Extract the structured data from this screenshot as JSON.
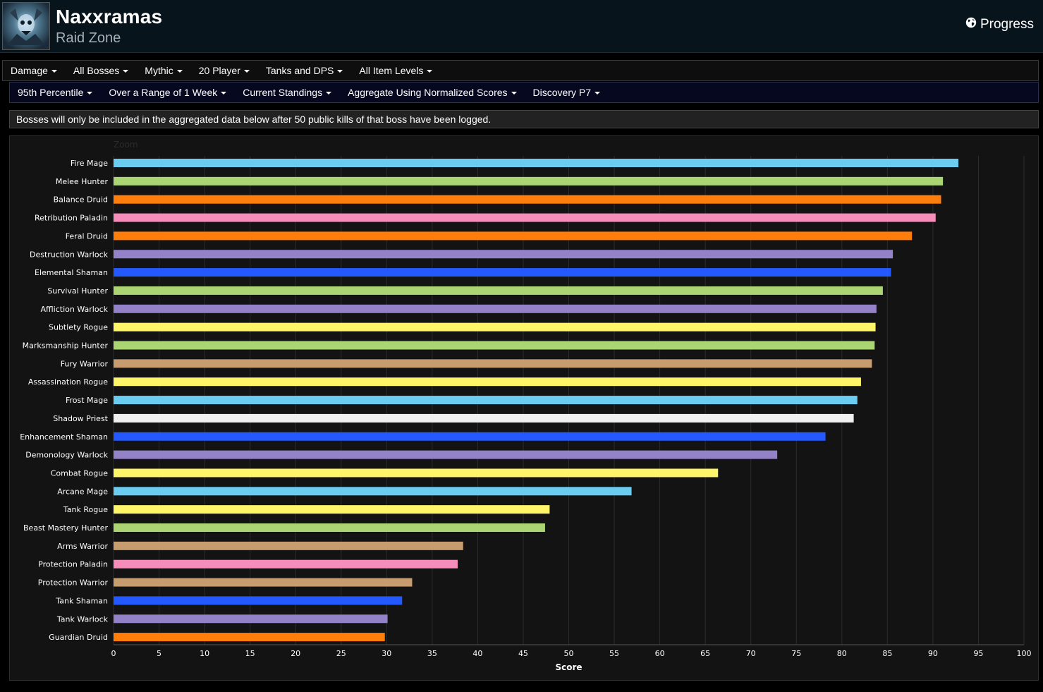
{
  "header": {
    "title": "Naxxramas",
    "subtitle": "Raid Zone",
    "progress_label": "Progress"
  },
  "filters_row1": [
    {
      "label": "Damage"
    },
    {
      "label": "All Bosses"
    },
    {
      "label": "Mythic"
    },
    {
      "label": "20 Player"
    },
    {
      "label": "Tanks and DPS"
    },
    {
      "label": "All Item Levels"
    }
  ],
  "filters_row2": [
    {
      "label": "95th Percentile"
    },
    {
      "label": "Over a Range of 1 Week"
    },
    {
      "label": "Current Standings"
    },
    {
      "label": "Aggregate Using Normalized Scores"
    },
    {
      "label": "Discovery P7"
    }
  ],
  "notice": "Bosses will only be included in the aggregated data below after 50 public kills of that boss have been logged.",
  "chart_data": {
    "type": "bar",
    "orientation": "horizontal",
    "zoom_label": "Zoom",
    "xlabel": "Score",
    "xlim": [
      0,
      100
    ],
    "xticks": [
      0,
      5,
      10,
      15,
      20,
      25,
      30,
      35,
      40,
      45,
      50,
      55,
      60,
      65,
      70,
      75,
      80,
      85,
      90,
      95,
      100
    ],
    "grid": "vertical",
    "categories": [
      "Fire Mage",
      "Melee Hunter",
      "Balance Druid",
      "Retribution Paladin",
      "Feral Druid",
      "Destruction Warlock",
      "Elemental Shaman",
      "Survival Hunter",
      "Affliction Warlock",
      "Subtlety Rogue",
      "Marksmanship Hunter",
      "Fury Warrior",
      "Assassination Rogue",
      "Frost Mage",
      "Shadow Priest",
      "Enhancement Shaman",
      "Demonology Warlock",
      "Combat Rogue",
      "Arcane Mage",
      "Tank Rogue",
      "Beast Mastery Hunter",
      "Arms Warrior",
      "Protection Paladin",
      "Protection Warrior",
      "Tank Shaman",
      "Tank Warlock",
      "Guardian Druid"
    ],
    "values": [
      92.8,
      91.1,
      90.9,
      90.3,
      87.7,
      85.6,
      85.4,
      84.5,
      83.8,
      83.7,
      83.6,
      83.3,
      82.1,
      81.7,
      81.3,
      78.2,
      72.9,
      66.4,
      56.9,
      47.9,
      47.4,
      38.4,
      37.8,
      32.8,
      31.7,
      30.1,
      29.8
    ],
    "colors": [
      "#69ccf0",
      "#abd473",
      "#ff7d0a",
      "#f58cba",
      "#ff7d0a",
      "#9482c9",
      "#2459ff",
      "#abd473",
      "#9482c9",
      "#fff569",
      "#abd473",
      "#c79c6e",
      "#fff569",
      "#69ccf0",
      "#f0f0f0",
      "#2459ff",
      "#9482c9",
      "#fff569",
      "#69ccf0",
      "#fff569",
      "#abd473",
      "#c79c6e",
      "#f58cba",
      "#c79c6e",
      "#2459ff",
      "#9482c9",
      "#ff7d0a"
    ]
  }
}
